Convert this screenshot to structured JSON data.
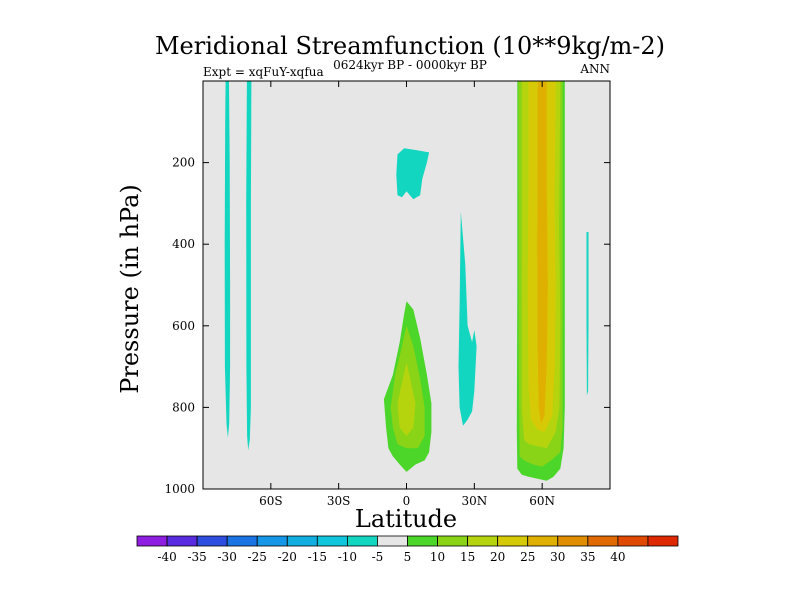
{
  "chart_data": {
    "type": "contour",
    "title": "Meridional Streamfunction (10**9kg/m-2)",
    "left_label": "Expt = xqFuY-xqfua",
    "center_label": "0624kyr BP - 0000kyr BP",
    "right_label": "ANN",
    "xlabel": "Latitude",
    "ylabel": "Pressure (in hPa)",
    "xlim": [
      -90,
      90
    ],
    "ylim": [
      0,
      1000
    ],
    "y_inverted": true,
    "x_ticks": [
      {
        "value": -60,
        "label": "60S"
      },
      {
        "value": -30,
        "label": "30S"
      },
      {
        "value": 0,
        "label": "0"
      },
      {
        "value": 30,
        "label": "30N"
      },
      {
        "value": 60,
        "label": "60N"
      }
    ],
    "y_ticks": [
      {
        "value": 200,
        "label": "200"
      },
      {
        "value": 400,
        "label": "400"
      },
      {
        "value": 600,
        "label": "600"
      },
      {
        "value": 800,
        "label": "800"
      },
      {
        "value": 1000,
        "label": "1000"
      }
    ],
    "background_color": "#e6e6e6",
    "colorbar": {
      "colors": [
        "#8f1fe0",
        "#5a2ce0",
        "#2e4ee0",
        "#1c74e4",
        "#1596e6",
        "#12aee2",
        "#10c6dc",
        "#12d6c0",
        "#e6e6e6",
        "#4cd62a",
        "#8ad418",
        "#b6d40e",
        "#d6ca06",
        "#e0b000",
        "#e08e00",
        "#e06a00",
        "#e04a00",
        "#de2800"
      ],
      "labels": [
        "-40",
        "-35",
        "-30",
        "-25",
        "-20",
        "-15",
        "-10",
        "-5",
        "5",
        "10",
        "15",
        "20",
        "25",
        "30",
        "35",
        "40"
      ]
    },
    "regions": [
      {
        "level": -5,
        "color": "#12d6c0",
        "points": [
          [
            -80,
            0
          ],
          [
            -78.5,
            0
          ],
          [
            -78.2,
            200
          ],
          [
            -78,
            500
          ],
          [
            -78,
            700
          ],
          [
            -78.4,
            840
          ],
          [
            -79,
            875
          ],
          [
            -79.6,
            840
          ],
          [
            -80.3,
            700
          ],
          [
            -80.4,
            400
          ],
          [
            -80.2,
            100
          ]
        ]
      },
      {
        "level": -5,
        "color": "#12d6c0",
        "points": [
          [
            -70.6,
            0
          ],
          [
            -68.6,
            0
          ],
          [
            -68.8,
            300
          ],
          [
            -68.8,
            800
          ],
          [
            -69.3,
            880
          ],
          [
            -70,
            905
          ],
          [
            -70.5,
            870
          ],
          [
            -70.8,
            700
          ],
          [
            -70.9,
            300
          ]
        ]
      },
      {
        "level": -5,
        "color": "#12d6c0",
        "points": [
          [
            -4,
            180
          ],
          [
            -1,
            165
          ],
          [
            5,
            170
          ],
          [
            10,
            175
          ],
          [
            9,
            200
          ],
          [
            7,
            240
          ],
          [
            6,
            280
          ],
          [
            3,
            290
          ],
          [
            0,
            270
          ],
          [
            -2,
            285
          ],
          [
            -4,
            280
          ],
          [
            -4.5,
            230
          ]
        ]
      },
      {
        "level": -5,
        "color": "#12d6c0",
        "points": [
          [
            24,
            320
          ],
          [
            26,
            450
          ],
          [
            27,
            600
          ],
          [
            29,
            640
          ],
          [
            30,
            610
          ],
          [
            31,
            650
          ],
          [
            30,
            760
          ],
          [
            29,
            810
          ],
          [
            27,
            830
          ],
          [
            25,
            845
          ],
          [
            23.5,
            800
          ],
          [
            23,
            700
          ],
          [
            23.5,
            550
          ]
        ]
      },
      {
        "level": -5,
        "color": "#12d6c0",
        "points": [
          [
            79.6,
            370
          ],
          [
            80.5,
            370
          ],
          [
            80.5,
            600
          ],
          [
            80.3,
            760
          ],
          [
            79.8,
            770
          ],
          [
            79.6,
            600
          ]
        ]
      },
      {
        "level": 5,
        "color": "#4cd62a",
        "points": [
          [
            0,
            540
          ],
          [
            3,
            560
          ],
          [
            6,
            630
          ],
          [
            9,
            720
          ],
          [
            11,
            790
          ],
          [
            11,
            860
          ],
          [
            10,
            910
          ],
          [
            8,
            930
          ],
          [
            4,
            940
          ],
          [
            0,
            958
          ],
          [
            -3,
            940
          ],
          [
            -6,
            920
          ],
          [
            -8,
            900
          ],
          [
            -9,
            850
          ],
          [
            -10,
            780
          ],
          [
            -6,
            720
          ],
          [
            -3,
            640
          ],
          [
            -1,
            570
          ]
        ]
      },
      {
        "level": 10,
        "color": "#8ad418",
        "points": [
          [
            0,
            600
          ],
          [
            3,
            650
          ],
          [
            6,
            730
          ],
          [
            8,
            800
          ],
          [
            8,
            870
          ],
          [
            5,
            900
          ],
          [
            0,
            900
          ],
          [
            -4,
            890
          ],
          [
            -6,
            850
          ],
          [
            -7,
            800
          ],
          [
            -5,
            720
          ],
          [
            -2,
            650
          ]
        ]
      },
      {
        "level": 15,
        "color": "#b6d40e",
        "points": [
          [
            0,
            690
          ],
          [
            2,
            740
          ],
          [
            4,
            790
          ],
          [
            3,
            850
          ],
          [
            0,
            870
          ],
          [
            -3,
            850
          ],
          [
            -4,
            790
          ],
          [
            -2,
            740
          ]
        ]
      },
      {
        "level": 5,
        "color": "#4cd62a",
        "points": [
          [
            49,
            0
          ],
          [
            70,
            0
          ],
          [
            70,
            800
          ],
          [
            69.5,
            900
          ],
          [
            68,
            950
          ],
          [
            65,
            970
          ],
          [
            62,
            980
          ],
          [
            58,
            975
          ],
          [
            54,
            970
          ],
          [
            51,
            965
          ],
          [
            49,
            950
          ],
          [
            48.8,
            850
          ],
          [
            49,
            500
          ]
        ]
      },
      {
        "level": 10,
        "color": "#8ad418",
        "points": [
          [
            49.5,
            0
          ],
          [
            69,
            0
          ],
          [
            69,
            850
          ],
          [
            68,
            910
          ],
          [
            64,
            930
          ],
          [
            60,
            945
          ],
          [
            56,
            940
          ],
          [
            52,
            930
          ],
          [
            50,
            920
          ],
          [
            49.6,
            700
          ]
        ]
      },
      {
        "level": 15,
        "color": "#b6d40e",
        "points": [
          [
            51,
            0
          ],
          [
            68,
            0
          ],
          [
            67.5,
            350
          ],
          [
            68,
            600
          ],
          [
            67.6,
            800
          ],
          [
            66,
            860
          ],
          [
            62,
            900
          ],
          [
            58,
            895
          ],
          [
            54,
            890
          ],
          [
            52,
            880
          ],
          [
            51,
            800
          ],
          [
            51,
            400
          ]
        ]
      },
      {
        "level": 20,
        "color": "#d6ca06",
        "points": [
          [
            54,
            0
          ],
          [
            66,
            0
          ],
          [
            65.5,
            300
          ],
          [
            66,
            500
          ],
          [
            65.6,
            700
          ],
          [
            64.5,
            820
          ],
          [
            61,
            860
          ],
          [
            58,
            855
          ],
          [
            55,
            830
          ],
          [
            54,
            750
          ],
          [
            53.6,
            500
          ],
          [
            54,
            250
          ]
        ]
      },
      {
        "level": 25,
        "color": "#e0b000",
        "points": [
          [
            58,
            0
          ],
          [
            62,
            0
          ],
          [
            62,
            250
          ],
          [
            62.5,
            500
          ],
          [
            62,
            700
          ],
          [
            61,
            820
          ],
          [
            59.5,
            840
          ],
          [
            58.5,
            800
          ],
          [
            58,
            650
          ],
          [
            57.8,
            400
          ],
          [
            58,
            150
          ]
        ]
      }
    ]
  }
}
